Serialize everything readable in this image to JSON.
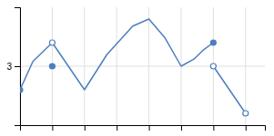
{
  "chart_data": {
    "type": "line",
    "series": [
      {
        "type": "line",
        "color": "#4d7ebf",
        "x": [
          0,
          0.4,
          1,
          1.5,
          2,
          2.7,
          3.5,
          4,
          4.5,
          5,
          5.4,
          5.7,
          6
        ],
        "values": [
          2,
          3.2,
          4,
          3.0,
          2,
          3.5,
          4.7,
          5,
          4.2,
          3,
          3.3,
          3.7,
          4
        ]
      },
      {
        "type": "line",
        "color": "#4d7ebf",
        "x": [
          6,
          6.5,
          7
        ],
        "values": [
          3,
          2.0,
          1
        ]
      },
      {
        "type": "scatter",
        "marker": "circle",
        "color": "#4d7ebf",
        "x": [
          0,
          6,
          1
        ],
        "values": [
          2,
          4,
          3
        ]
      },
      {
        "type": "scatter",
        "marker": "circle-open",
        "color": "#4d7ebf",
        "x": [
          1,
          6,
          7
        ],
        "values": [
          4,
          3,
          1
        ]
      }
    ],
    "xlim": [
      0,
      7.6
    ],
    "ylim": [
      0.5,
      5.5
    ],
    "xticks": [
      0,
      1,
      2,
      3,
      4,
      5,
      6,
      7
    ],
    "yticks": [
      3
    ],
    "grid": true,
    "tick_labels": "y"
  }
}
